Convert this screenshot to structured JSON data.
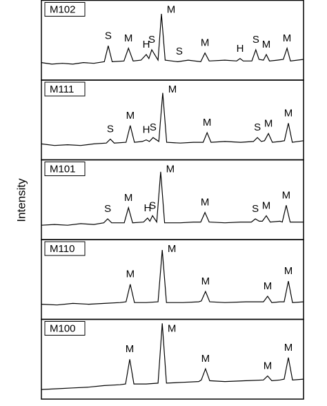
{
  "chart_data": {
    "type": "line",
    "ylabel": "Intensity",
    "color": "#000000",
    "xlim": [
      0,
      100
    ],
    "ylim": [
      0,
      100
    ],
    "panels": [
      {
        "name": "M102",
        "x": [
          0,
          4,
          8,
          12,
          16,
          20,
          24,
          25.5,
          27,
          31.5,
          33.2,
          35,
          38,
          40,
          41,
          42.1,
          44.5,
          45.8,
          47.2,
          52,
          56,
          60.8,
          62.4,
          64,
          70,
          74.5,
          75.8,
          77,
          80.3,
          81.8,
          83,
          84.7,
          85.8,
          87,
          90,
          92.3,
          93.7,
          95,
          100
        ],
        "values": [
          22,
          20,
          21,
          20,
          22,
          21,
          23,
          43,
          23,
          24,
          40,
          24,
          25,
          32,
          27,
          38,
          25,
          83,
          25,
          23,
          25,
          23,
          34,
          24,
          25,
          24,
          27,
          24,
          24,
          38,
          26,
          25,
          32,
          24,
          25,
          26,
          40,
          24,
          26
        ],
        "annotations": [
          {
            "text": "S",
            "x": 25.5
          },
          {
            "text": "M",
            "x": 33.2
          },
          {
            "text": "H",
            "x": 40
          },
          {
            "text": "S",
            "x": 42.1
          },
          {
            "text": "M",
            "x": 45.8
          },
          {
            "text": "S",
            "x": 52.6
          },
          {
            "text": "M",
            "x": 62.4
          },
          {
            "text": "H",
            "x": 75.8
          },
          {
            "text": "S",
            "x": 81.8
          },
          {
            "text": "M",
            "x": 85.8
          },
          {
            "text": "M",
            "x": 93.7
          }
        ]
      },
      {
        "name": "M111",
        "x": [
          0,
          5,
          10,
          15,
          20,
          24.8,
          26.3,
          27.8,
          32.3,
          33.9,
          35.5,
          38.5,
          40,
          41.2,
          42.6,
          44.8,
          46.3,
          47.8,
          53,
          58,
          61.7,
          63.2,
          64.7,
          70,
          76,
          80.9,
          82.4,
          83.9,
          85.1,
          86.6,
          88.1,
          91,
          92.7,
          94.2,
          95.7,
          100
        ],
        "values": [
          20,
          18,
          19,
          18,
          20,
          21,
          26,
          21,
          22,
          43,
          22,
          23,
          25,
          23,
          28,
          23,
          84,
          22,
          21,
          22,
          22,
          34,
          22,
          23,
          22,
          23,
          28,
          23,
          24,
          33,
          22,
          23,
          24,
          46,
          22,
          24
        ],
        "annotations": [
          {
            "text": "S",
            "x": 26.3
          },
          {
            "text": "M",
            "x": 33.9
          },
          {
            "text": "H",
            "x": 40
          },
          {
            "text": "S",
            "x": 42.6
          },
          {
            "text": "M",
            "x": 46.3
          },
          {
            "text": "M",
            "x": 63.2
          },
          {
            "text": "S",
            "x": 82.4
          },
          {
            "text": "M",
            "x": 86.6
          },
          {
            "text": "M",
            "x": 94.2
          }
        ]
      },
      {
        "name": "M101",
        "x": [
          0,
          5,
          10,
          15,
          20,
          23.8,
          25.3,
          26.8,
          31.6,
          33.2,
          34.8,
          39,
          40.5,
          41.4,
          42.4,
          44,
          45.5,
          47,
          53,
          58,
          60.8,
          62.4,
          64,
          70,
          76,
          80.1,
          81.6,
          83.1,
          84.3,
          85.8,
          87.3,
          91,
          91.9,
          93.4,
          94.9,
          100
        ],
        "values": [
          18,
          19,
          18,
          20,
          19,
          21,
          26,
          21,
          21,
          40,
          21,
          22,
          27,
          23,
          30,
          22,
          85,
          21,
          21,
          22,
          22,
          34,
          22,
          21,
          22,
          22,
          26,
          23,
          23,
          30,
          22,
          23,
          22,
          43,
          22,
          22
        ],
        "annotations": [
          {
            "text": "S",
            "x": 25.3
          },
          {
            "text": "M",
            "x": 33.2
          },
          {
            "text": "H",
            "x": 40.5
          },
          {
            "text": "S",
            "x": 42.4
          },
          {
            "text": "M",
            "x": 45.5
          },
          {
            "text": "M",
            "x": 62.4
          },
          {
            "text": "S",
            "x": 81.6
          },
          {
            "text": "M",
            "x": 85.8
          },
          {
            "text": "M",
            "x": 93.4
          }
        ]
      },
      {
        "name": "M110",
        "x": [
          0,
          6,
          12,
          18,
          24,
          30,
          32.3,
          33.9,
          35.5,
          40,
          44.5,
          46.1,
          47.7,
          54,
          60,
          61,
          62.6,
          64.2,
          70,
          78,
          84.7,
          86.3,
          87.9,
          91,
          92.6,
          94.2,
          95.8,
          100
        ],
        "values": [
          19,
          18,
          20,
          19,
          20,
          21,
          22,
          44,
          21,
          21,
          22,
          87,
          21,
          21,
          22,
          23,
          35,
          22,
          21,
          22,
          22,
          29,
          21,
          22,
          22,
          48,
          21,
          22
        ],
        "annotations": [
          {
            "text": "M",
            "x": 33.9
          },
          {
            "text": "M",
            "x": 46.1
          },
          {
            "text": "M",
            "x": 62.6
          },
          {
            "text": "M",
            "x": 86.3
          },
          {
            "text": "M",
            "x": 94.2
          }
        ]
      },
      {
        "name": "M100",
        "x": [
          0,
          6,
          12,
          18,
          24,
          30,
          32.1,
          33.7,
          35.3,
          40,
          44.5,
          46.1,
          47.7,
          54,
          60,
          61,
          62.6,
          64.2,
          70,
          78,
          84.7,
          86.3,
          87.9,
          91,
          92.6,
          94.2,
          95.8,
          100
        ],
        "values": [
          12,
          13,
          14,
          15,
          17,
          18,
          19,
          50,
          19,
          19,
          20,
          95,
          20,
          21,
          22,
          24,
          38,
          23,
          22,
          23,
          24,
          29,
          23,
          24,
          25,
          52,
          24,
          25
        ],
        "annotations": [
          {
            "text": "M",
            "x": 33.7
          },
          {
            "text": "M",
            "x": 46.1
          },
          {
            "text": "M",
            "x": 62.6
          },
          {
            "text": "M",
            "x": 86.3
          },
          {
            "text": "M",
            "x": 94.2
          }
        ]
      }
    ]
  }
}
